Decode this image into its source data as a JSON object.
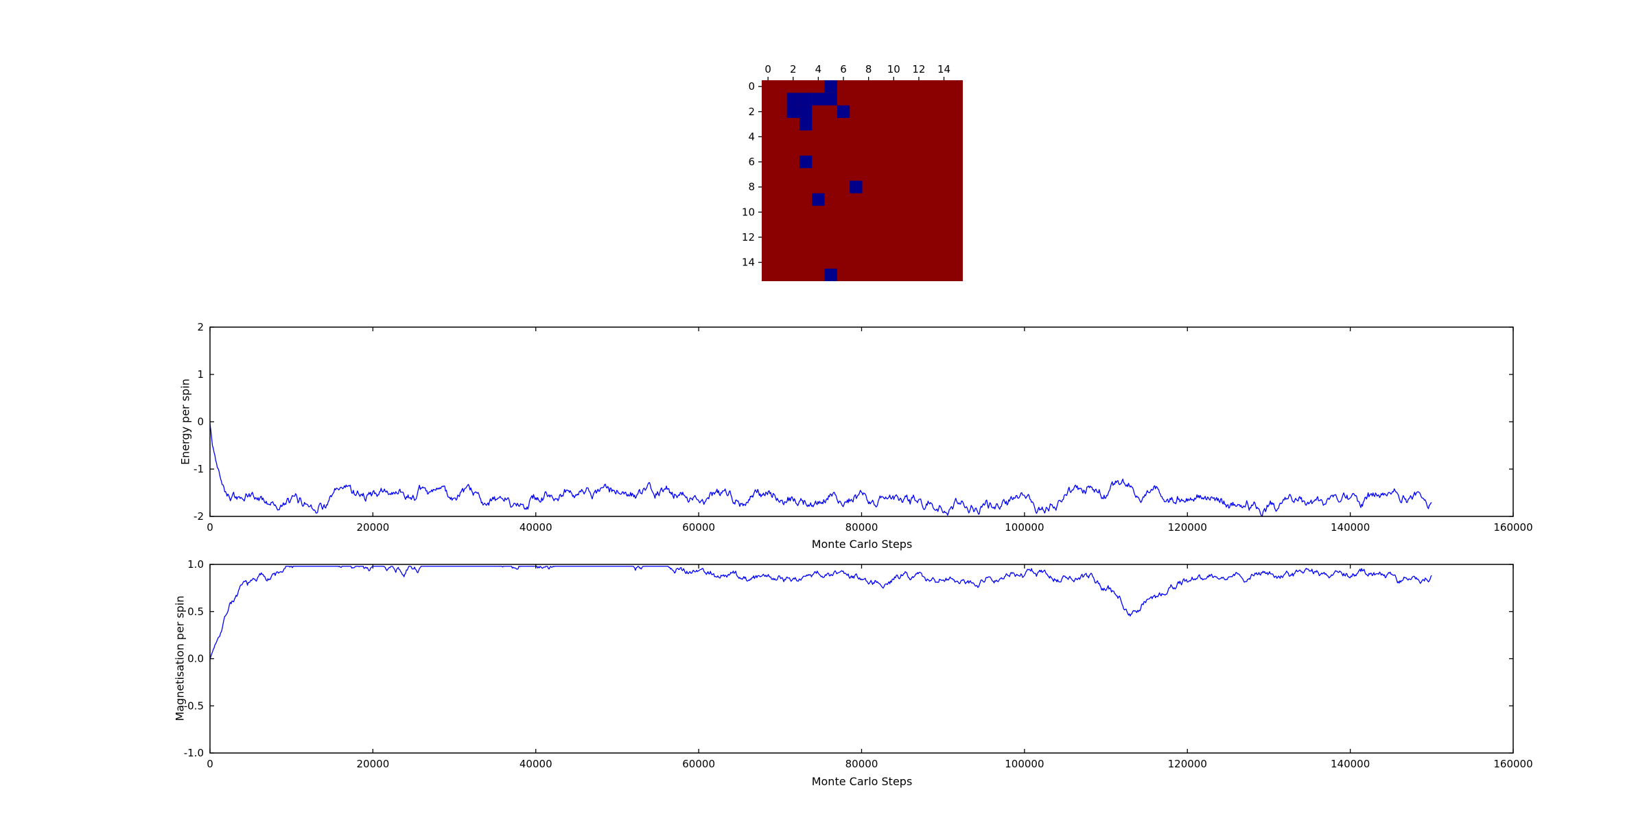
{
  "figure": {
    "background": "#ffffff",
    "line_color": "#0000ff",
    "text_color": "#000000"
  },
  "chart_data": [
    {
      "type": "heatmap",
      "title": "",
      "rows": 16,
      "cols": 16,
      "tick_positions": [
        0,
        2,
        4,
        6,
        8,
        10,
        12,
        14
      ],
      "tick_labels": [
        "0",
        "2",
        "4",
        "6",
        "8",
        "10",
        "12",
        "14"
      ],
      "value_high": 1,
      "value_low": -1,
      "color_high": "#8b0000",
      "color_low": "#00008b",
      "low_cells": [
        [
          0,
          5
        ],
        [
          1,
          2
        ],
        [
          1,
          3
        ],
        [
          1,
          4
        ],
        [
          1,
          5
        ],
        [
          2,
          2
        ],
        [
          2,
          3
        ],
        [
          2,
          6
        ],
        [
          3,
          3
        ],
        [
          6,
          3
        ],
        [
          8,
          7
        ],
        [
          9,
          4
        ],
        [
          15,
          5
        ]
      ]
    },
    {
      "type": "line",
      "title": "",
      "xlabel": "Monte Carlo Steps",
      "ylabel": "Energy per spin",
      "xlim": [
        0,
        160000
      ],
      "ylim": [
        -2,
        2
      ],
      "xticks": [
        0,
        20000,
        40000,
        60000,
        80000,
        100000,
        120000,
        140000,
        160000
      ],
      "xtick_labels": [
        "0",
        "20000",
        "40000",
        "60000",
        "80000",
        "100000",
        "120000",
        "140000",
        "160000"
      ],
      "yticks": [
        -2,
        -1,
        0,
        1,
        2
      ],
      "ytick_labels": [
        "-2",
        "-1",
        "0",
        "1",
        "2"
      ],
      "grid": false,
      "legend": "none",
      "series": [
        {
          "name": "energy",
          "color": "#0000ff",
          "x_start": 0,
          "x_end": 150000,
          "noise_amp": 0.14,
          "seed": 42,
          "clamp_min": -2,
          "clamp_max": 2,
          "keypoints": [
            [
              0,
              -0.05
            ],
            [
              300,
              -0.5
            ],
            [
              800,
              -0.9
            ],
            [
              1500,
              -1.2
            ],
            [
              2500,
              -1.45
            ],
            [
              4000,
              -1.58
            ],
            [
              6000,
              -1.62
            ],
            [
              9000,
              -1.68
            ],
            [
              12000,
              -1.72
            ],
            [
              16000,
              -1.6
            ],
            [
              20000,
              -1.68
            ],
            [
              24000,
              -1.55
            ],
            [
              26000,
              -1.7
            ],
            [
              30000,
              -1.72
            ],
            [
              40000,
              -1.7
            ],
            [
              50000,
              -1.72
            ],
            [
              60000,
              -1.7
            ],
            [
              67000,
              -1.55
            ],
            [
              70000,
              -1.68
            ],
            [
              75000,
              -1.6
            ],
            [
              80000,
              -1.65
            ],
            [
              90000,
              -1.72
            ],
            [
              100000,
              -1.68
            ],
            [
              105000,
              -1.55
            ],
            [
              108000,
              -1.5
            ],
            [
              111000,
              -1.45
            ],
            [
              113000,
              -1.3
            ],
            [
              114500,
              -1.5
            ],
            [
              116000,
              -1.45
            ],
            [
              118000,
              -1.6
            ],
            [
              121000,
              -1.7
            ],
            [
              130000,
              -1.72
            ],
            [
              140000,
              -1.68
            ],
            [
              145000,
              -1.6
            ],
            [
              150000,
              -1.68
            ]
          ]
        }
      ]
    },
    {
      "type": "line",
      "title": "",
      "xlabel": "Monte Carlo Steps",
      "ylabel": "Magnetisation per spin",
      "xlim": [
        0,
        160000
      ],
      "ylim": [
        -1,
        1
      ],
      "xticks": [
        0,
        20000,
        40000,
        60000,
        80000,
        100000,
        120000,
        140000,
        160000
      ],
      "xtick_labels": [
        "0",
        "20000",
        "40000",
        "60000",
        "80000",
        "100000",
        "120000",
        "140000",
        "160000"
      ],
      "yticks": [
        -1.0,
        -0.5,
        0.0,
        0.5,
        1.0
      ],
      "ytick_labels": [
        "-1.0",
        "-0.5",
        "0.0",
        "0.5",
        "1.0"
      ],
      "grid": false,
      "legend": "none",
      "series": [
        {
          "name": "magnetisation",
          "color": "#0000ff",
          "x_start": 0,
          "x_end": 150000,
          "noise_amp": 0.05,
          "seed": 7,
          "clamp_min": -1,
          "clamp_max": 0.98,
          "keypoints": [
            [
              0,
              0.0
            ],
            [
              200,
              0.05
            ],
            [
              600,
              0.15
            ],
            [
              1200,
              0.3
            ],
            [
              2500,
              0.62
            ],
            [
              4000,
              0.72
            ],
            [
              6000,
              0.78
            ],
            [
              9000,
              0.85
            ],
            [
              12000,
              0.93
            ],
            [
              15000,
              0.95
            ],
            [
              18000,
              0.88
            ],
            [
              22000,
              0.9
            ],
            [
              25000,
              0.87
            ],
            [
              30000,
              0.93
            ],
            [
              40000,
              0.92
            ],
            [
              50000,
              0.93
            ],
            [
              60000,
              0.92
            ],
            [
              66000,
              0.85
            ],
            [
              70000,
              0.9
            ],
            [
              80000,
              0.9
            ],
            [
              90000,
              0.93
            ],
            [
              100000,
              0.93
            ],
            [
              104000,
              0.88
            ],
            [
              108000,
              0.8
            ],
            [
              111000,
              0.68
            ],
            [
              113000,
              0.5
            ],
            [
              114500,
              0.62
            ],
            [
              116000,
              0.7
            ],
            [
              118000,
              0.82
            ],
            [
              121000,
              0.9
            ],
            [
              130000,
              0.93
            ],
            [
              140000,
              0.9
            ],
            [
              145000,
              0.93
            ],
            [
              150000,
              0.88
            ]
          ]
        }
      ]
    }
  ]
}
